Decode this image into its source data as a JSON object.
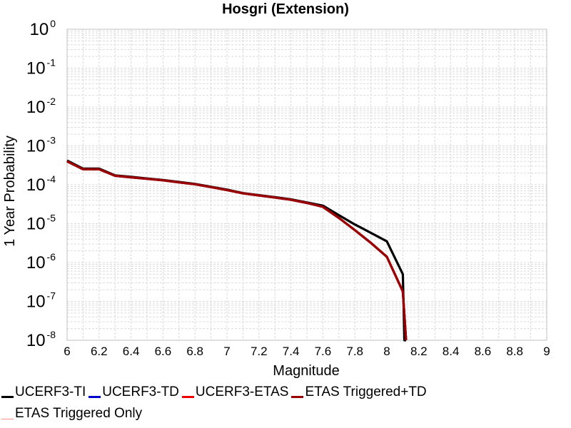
{
  "chart_data": {
    "type": "line",
    "title": "Hosgri (Extension)",
    "xlabel": "Magnitude",
    "ylabel": "1 Year Probability",
    "xlim": [
      6,
      9
    ],
    "ylim": [
      1e-08,
      1
    ],
    "yscale": "log",
    "grid": true,
    "legend_position": "bottom",
    "x_ticks": [
      "6",
      "6.2",
      "6.4",
      "6.6",
      "6.8",
      "7",
      "7.2",
      "7.4",
      "7.6",
      "7.8",
      "8",
      "8.2",
      "8.4",
      "8.6",
      "8.8",
      "9"
    ],
    "y_ticks": [
      {
        "base": "10",
        "exp": "0"
      },
      {
        "base": "10",
        "exp": "-1"
      },
      {
        "base": "10",
        "exp": "-2"
      },
      {
        "base": "10",
        "exp": "-3"
      },
      {
        "base": "10",
        "exp": "-4"
      },
      {
        "base": "10",
        "exp": "-5"
      },
      {
        "base": "10",
        "exp": "-6"
      },
      {
        "base": "10",
        "exp": "-7"
      },
      {
        "base": "10",
        "exp": "-8"
      }
    ],
    "series": [
      {
        "name": "UCERF3-TI",
        "color": "#000000",
        "width": "thick",
        "x": [
          6.0,
          6.1,
          6.2,
          6.3,
          6.4,
          6.5,
          6.6,
          6.7,
          6.8,
          6.9,
          7.0,
          7.1,
          7.2,
          7.3,
          7.4,
          7.5,
          7.6,
          7.7,
          7.8,
          7.9,
          8.0,
          8.1,
          8.11,
          8.12
        ],
        "y": [
          0.00042,
          0.00026,
          0.00026,
          0.000175,
          0.00016,
          0.000145,
          0.000133,
          0.000118,
          0.000105,
          8.9e-05,
          7.5e-05,
          6.1e-05,
          5.4e-05,
          4.8e-05,
          4.2e-05,
          3.5e-05,
          2.9e-05,
          1.65e-05,
          9.5e-06,
          5.8e-06,
          3.5e-06,
          5e-07,
          1e-08,
          1e-08
        ]
      },
      {
        "name": "UCERF3-TD",
        "color": "#0000cc",
        "width": "thick",
        "x": [
          6.0,
          6.1,
          6.2,
          6.3,
          6.4,
          6.5,
          6.6,
          6.7,
          6.8,
          6.9,
          7.0,
          7.1,
          7.2,
          7.3,
          7.4,
          7.5,
          7.6,
          7.7,
          7.8,
          7.9,
          8.0,
          8.1,
          8.12
        ],
        "y": [
          0.0004,
          0.00025,
          0.00025,
          0.00017,
          0.000155,
          0.000142,
          0.00013,
          0.000115,
          0.000103,
          8.7e-05,
          7.3e-05,
          6e-05,
          5.3e-05,
          4.7e-05,
          4.1e-05,
          3.4e-05,
          2.7e-05,
          1.4e-05,
          6.8e-06,
          3.2e-06,
          1.4e-06,
          1.8e-07,
          1e-08
        ]
      },
      {
        "name": "UCERF3-ETAS",
        "color": "#ee0000",
        "width": "thick",
        "x": [
          6.0,
          6.1,
          6.2,
          6.3,
          6.4,
          6.5,
          6.6,
          6.7,
          6.8,
          6.9,
          7.0,
          7.1,
          7.2,
          7.3,
          7.4,
          7.5,
          7.6,
          7.7,
          7.8,
          7.9,
          8.0,
          8.1,
          8.12
        ],
        "y": [
          0.0004,
          0.00025,
          0.00025,
          0.00017,
          0.000155,
          0.000142,
          0.00013,
          0.000115,
          0.000103,
          8.7e-05,
          7.3e-05,
          6e-05,
          5.3e-05,
          4.7e-05,
          4.1e-05,
          3.4e-05,
          2.7e-05,
          1.4e-05,
          6.8e-06,
          3.2e-06,
          1.4e-06,
          1.8e-07,
          1e-08
        ]
      },
      {
        "name": "ETAS Triggered+TD",
        "color": "#990000",
        "width": "thick",
        "x": [
          6.0,
          6.1,
          6.2,
          6.3,
          6.4,
          6.5,
          6.6,
          6.7,
          6.8,
          6.9,
          7.0,
          7.1,
          7.2,
          7.3,
          7.4,
          7.5,
          7.6,
          7.7,
          7.8,
          7.9,
          8.0,
          8.1,
          8.12
        ],
        "y": [
          0.0004,
          0.00025,
          0.00025,
          0.00017,
          0.000155,
          0.000142,
          0.00013,
          0.000115,
          0.000103,
          8.7e-05,
          7.3e-05,
          6e-05,
          5.3e-05,
          4.7e-05,
          4.1e-05,
          3.4e-05,
          2.7e-05,
          1.4e-05,
          6.8e-06,
          3.2e-06,
          1.4e-06,
          1.8e-07,
          1e-08
        ]
      },
      {
        "name": "ETAS Triggered Only",
        "color": "#ff8888",
        "width": "thin",
        "x": [],
        "y": []
      }
    ]
  }
}
